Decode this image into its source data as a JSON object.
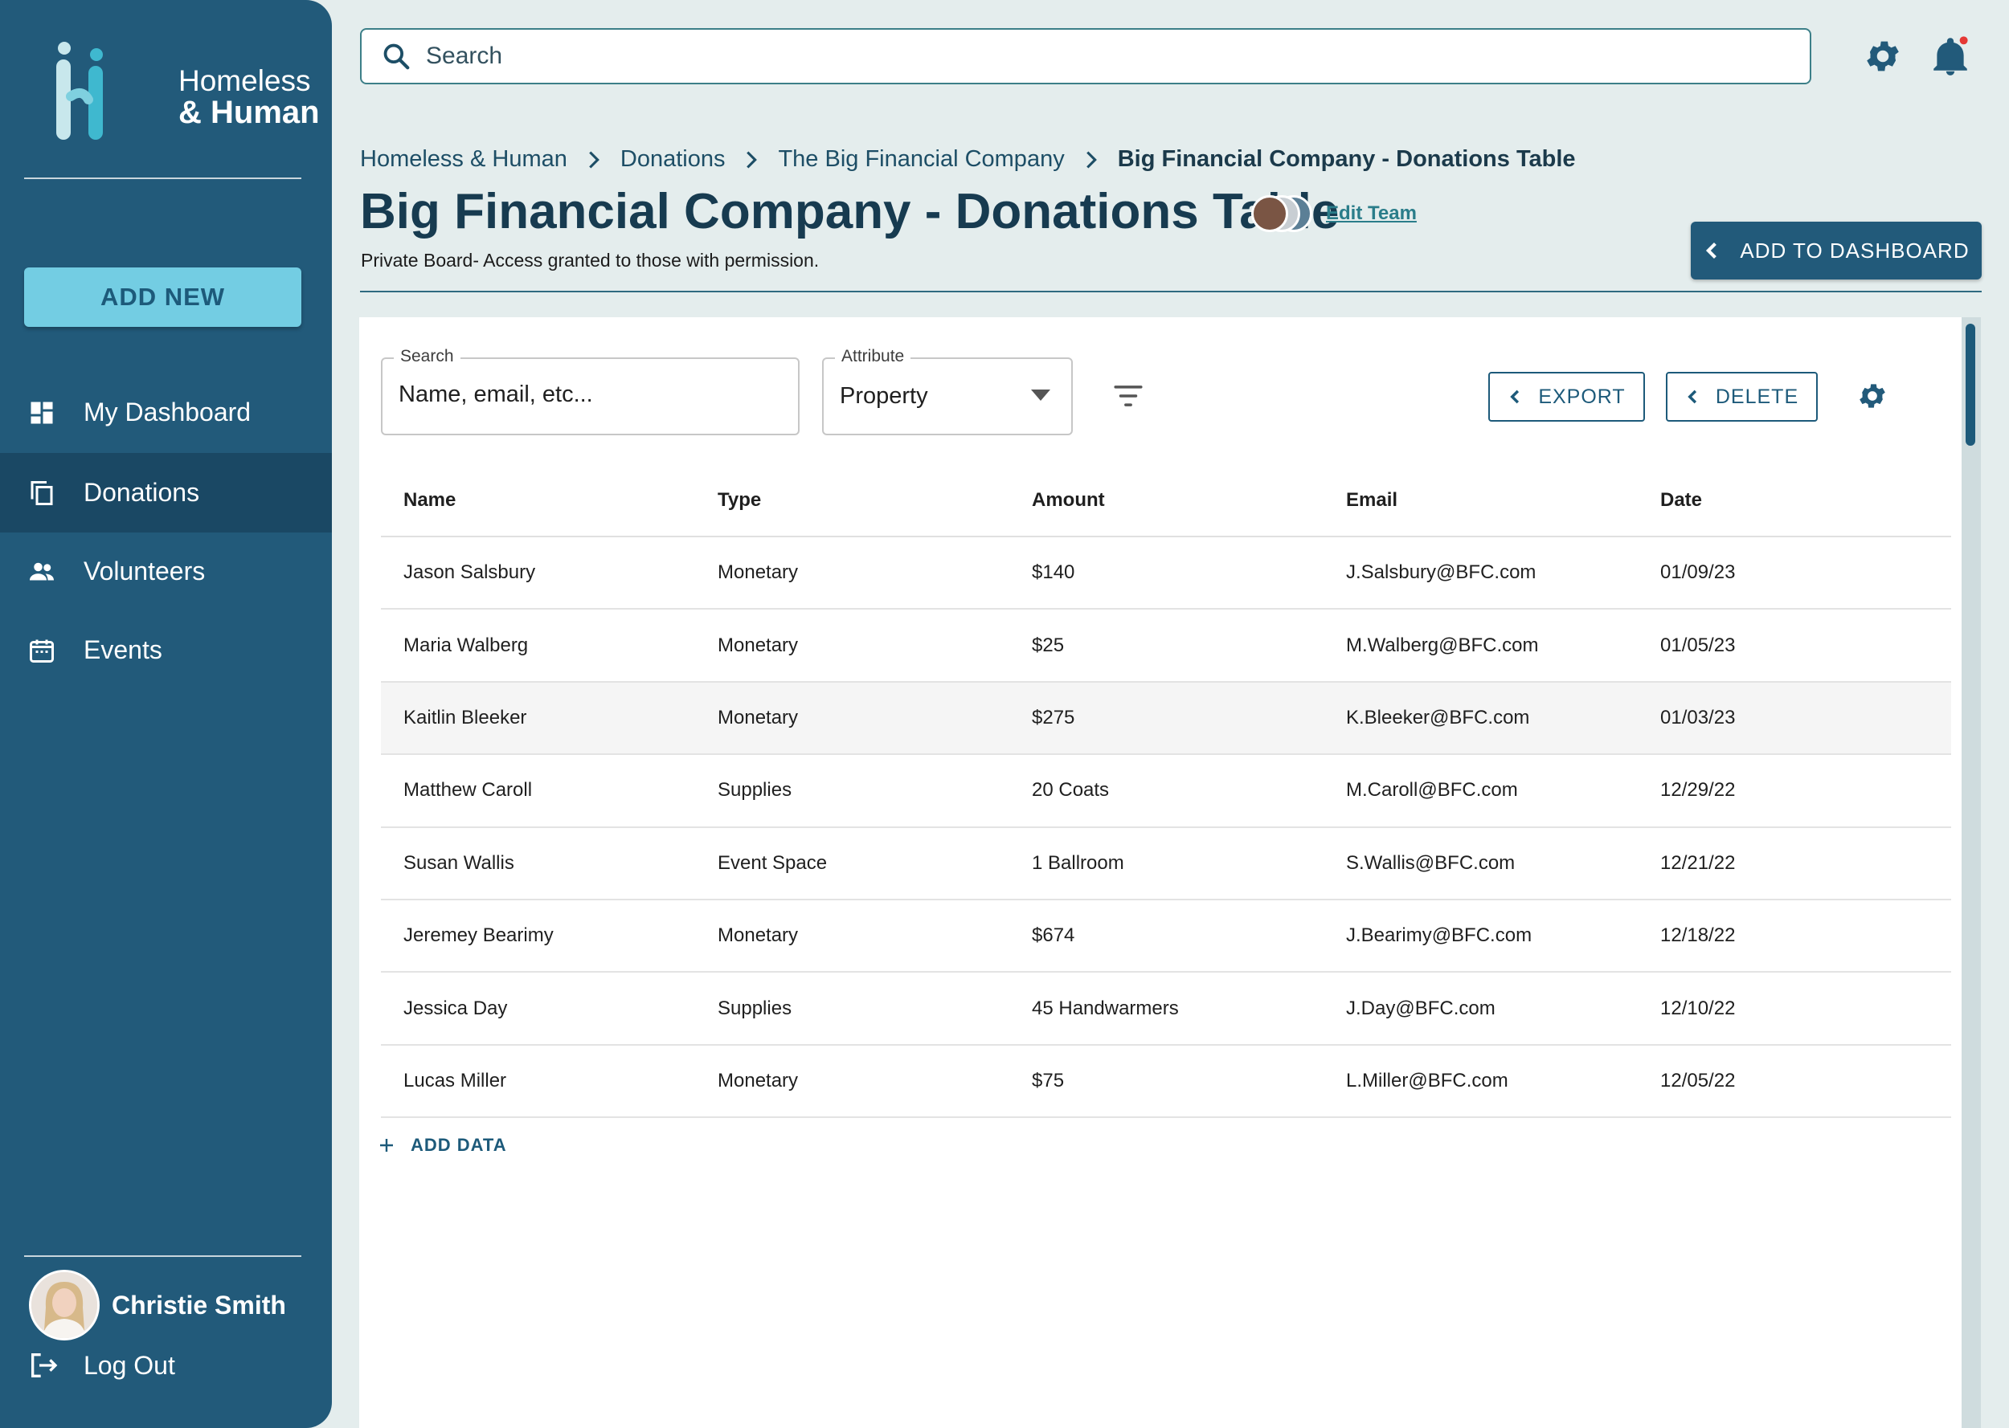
{
  "app": {
    "logo_line1": "Homeless",
    "logo_line2": "& Human"
  },
  "sidebar": {
    "add_new_label": "ADD NEW",
    "items": [
      {
        "label": "My Dashboard",
        "icon": "dashboard-icon"
      },
      {
        "label": "Donations",
        "icon": "copy-icon",
        "active": true
      },
      {
        "label": "Volunteers",
        "icon": "people-icon"
      },
      {
        "label": "Events",
        "icon": "calendar-icon"
      }
    ],
    "user_name": "Christie Smith",
    "logout_label": "Log Out"
  },
  "topbar": {
    "search_placeholder": "Search",
    "icons": [
      "settings-gear-icon",
      "notification-bell-icon"
    ]
  },
  "breadcrumb": [
    "Homeless & Human",
    "Donations",
    "The Big Financial Company",
    "Big Financial Company - Donations Table"
  ],
  "header": {
    "title": "Big Financial Company - Donations Table",
    "edit_team_label": "Edit Team",
    "subtitle": "Private Board-  Access granted to those with permission.",
    "add_to_dashboard_label": "ADD TO DASHBOARD"
  },
  "filters": {
    "search_label": "Search",
    "search_placeholder": "Name, email, etc...",
    "attribute_label": "Attribute",
    "attribute_value": "Property",
    "export_label": "EXPORT",
    "delete_label": "DELETE"
  },
  "table": {
    "columns": [
      "Name",
      "Type",
      "Amount",
      "Email",
      "Date"
    ],
    "rows": [
      [
        "Jason Salsbury",
        "Monetary",
        "$140",
        "J.Salsbury@BFC.com",
        "01/09/23"
      ],
      [
        "Maria Walberg",
        "Monetary",
        "$25",
        "M.Walberg@BFC.com",
        "01/05/23"
      ],
      [
        "Kaitlin Bleeker",
        "Monetary",
        "$275",
        "K.Bleeker@BFC.com",
        "01/03/23"
      ],
      [
        "Matthew Caroll",
        "Supplies",
        "20 Coats",
        "M.Caroll@BFC.com",
        "12/29/22"
      ],
      [
        "Susan Wallis",
        "Event Space",
        "1 Ballroom",
        "S.Wallis@BFC.com",
        "12/21/22"
      ],
      [
        "Jeremey Bearimy",
        "Monetary",
        "$674",
        "J.Bearimy@BFC.com",
        "12/18/22"
      ],
      [
        "Jessica Day",
        "Supplies",
        "45 Handwarmers",
        "J.Day@BFC.com",
        "12/10/22"
      ],
      [
        "Lucas Miller",
        "Monetary",
        "$75",
        "L.Miller@BFC.com",
        "12/05/22"
      ]
    ],
    "highlighted_row": 2,
    "add_data_label": "ADD DATA"
  },
  "colors": {
    "sidebar": "#225a7a",
    "sidebar_active": "#1a4864",
    "accent": "#73cde3",
    "background": "#e4eded",
    "notification_dot": "#e53935"
  }
}
